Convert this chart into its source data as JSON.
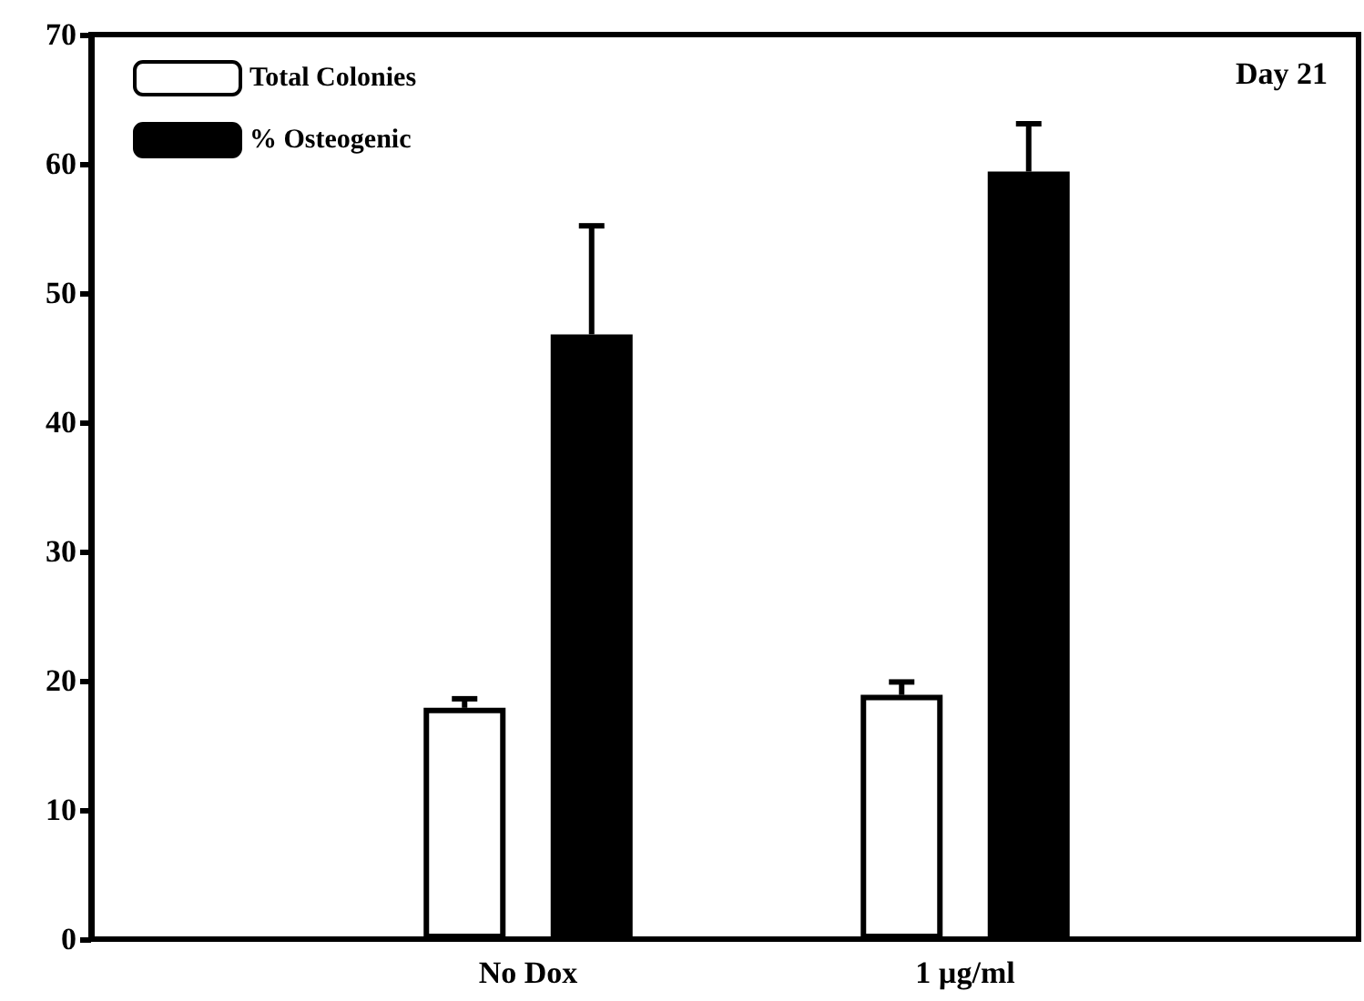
{
  "chart_data": {
    "type": "bar",
    "categories": [
      "No Dox",
      "1 µg/ml"
    ],
    "series": [
      {
        "name": "Total Colonies",
        "color": "#ffffff",
        "values": [
          17.9,
          18.9
        ],
        "errors": [
          [
            17.9,
            18.6
          ],
          [
            18.9,
            19.9
          ]
        ]
      },
      {
        "name": "% Osteogenic",
        "color": "#000000",
        "values": [
          46.8,
          59.4
        ],
        "errors": [
          [
            46.8,
            55.2
          ],
          [
            59.4,
            63.1
          ]
        ]
      }
    ],
    "ylim": [
      0,
      70
    ],
    "yticks": [
      0,
      10,
      20,
      30,
      40,
      50,
      60,
      70
    ],
    "annotations": [
      "Day 21"
    ],
    "grid": false,
    "legend": "top left"
  }
}
